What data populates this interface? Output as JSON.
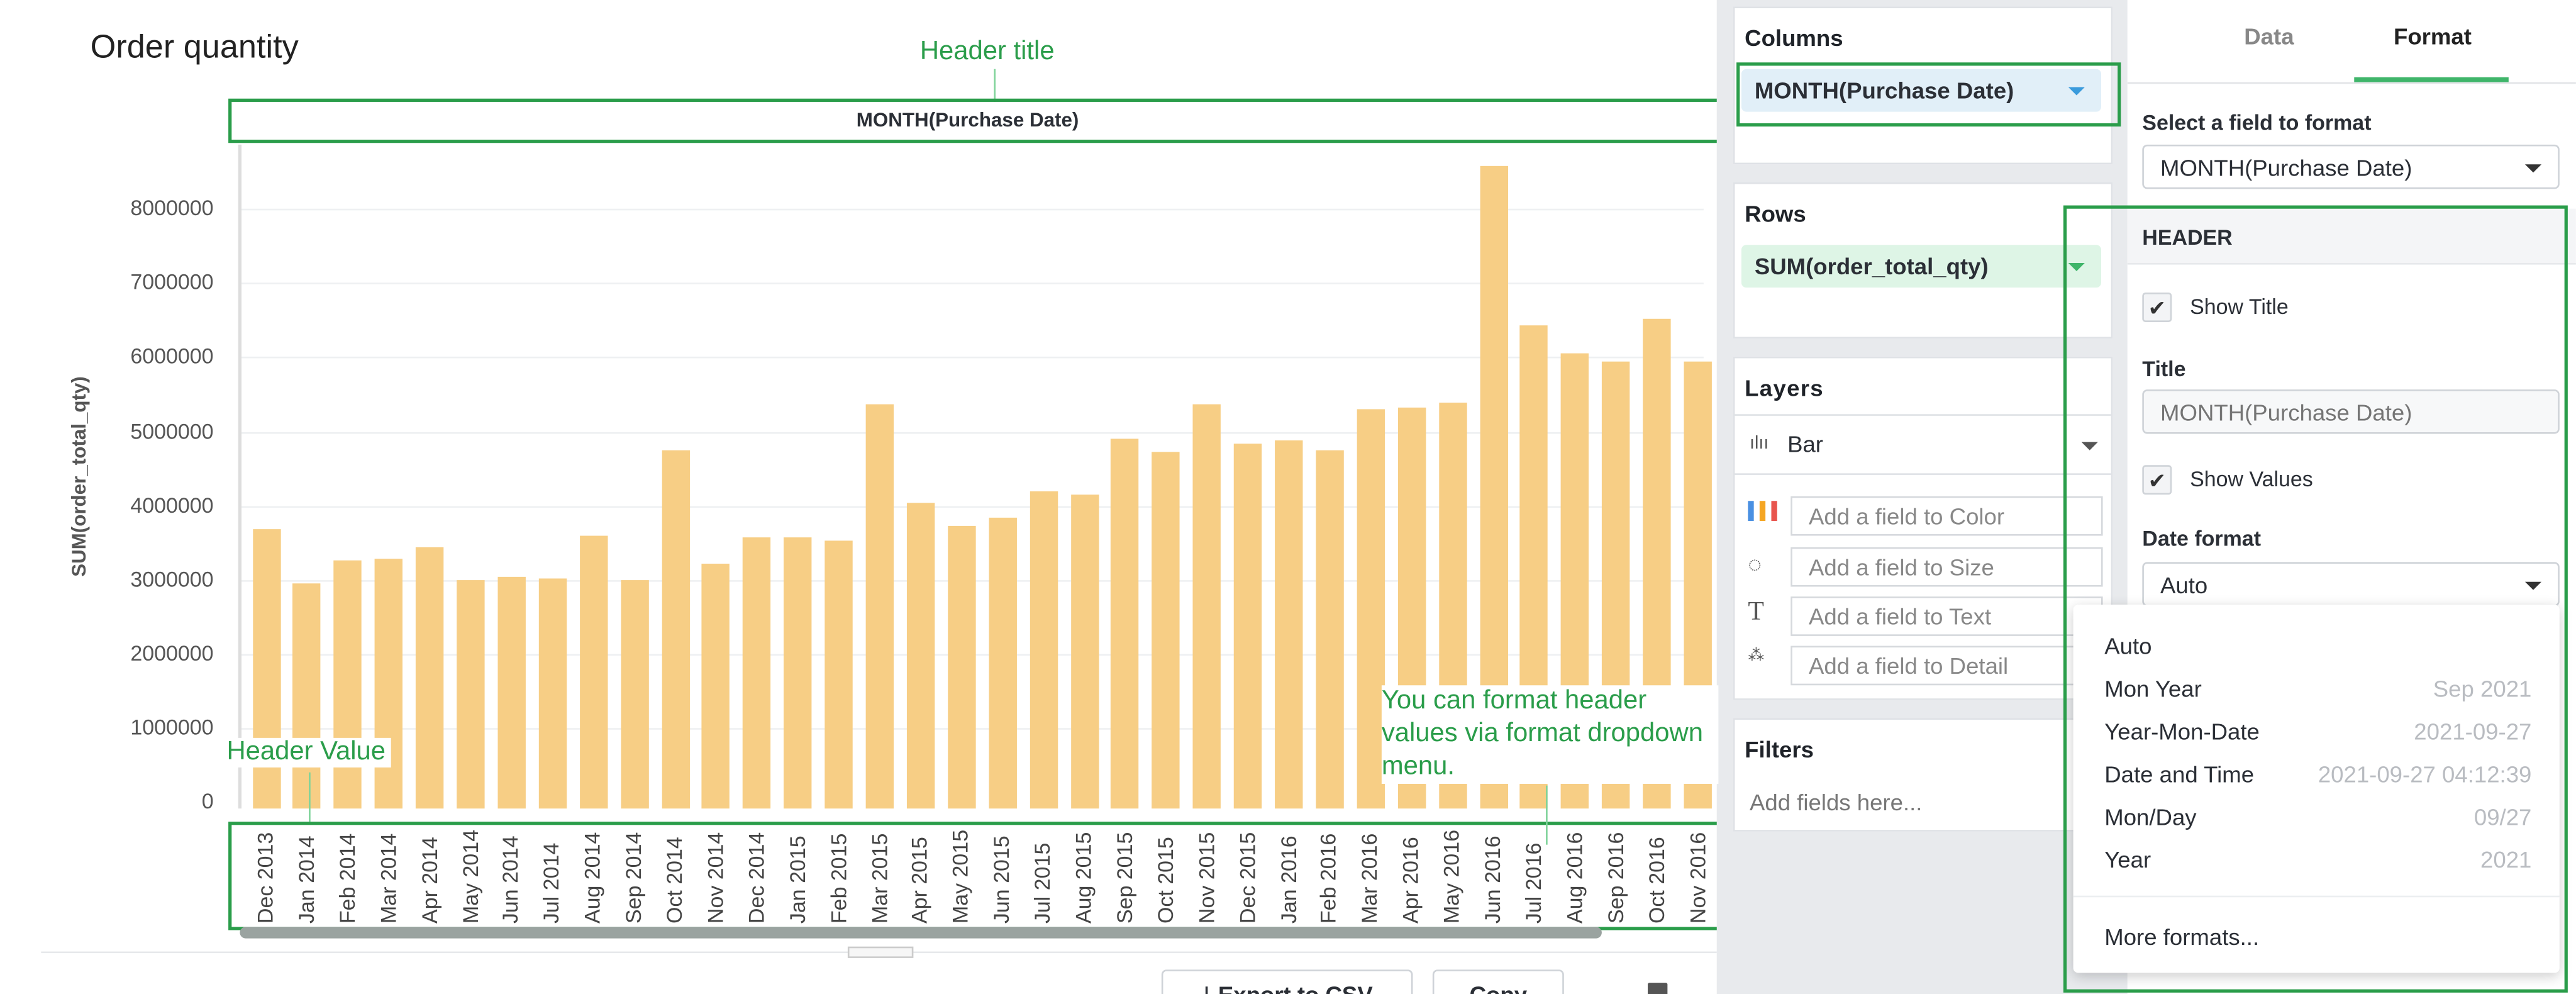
{
  "chart_title": "Order quantity",
  "annotations": {
    "header_title": "Header title",
    "header_value": "Header Value",
    "format_note": "You can format header values via format dropdown menu."
  },
  "chart_data": {
    "type": "bar",
    "title": "MONTH(Purchase Date)",
    "xlabel": "",
    "ylabel": "SUM(order_total_qty)",
    "ylim": [
      0,
      8600000
    ],
    "yticks": [
      "0",
      "1000000",
      "2000000",
      "3000000",
      "4000000",
      "5000000",
      "6000000",
      "7000000",
      "8000000"
    ],
    "grid": true,
    "color": "#f7ce85",
    "categories": [
      "Dec 2013",
      "Jan 2014",
      "Feb 2014",
      "Mar 2014",
      "Apr 2014",
      "May 2014",
      "Jun 2014",
      "Jul 2014",
      "Aug 2014",
      "Sep 2014",
      "Oct 2014",
      "Nov 2014",
      "Dec 2014",
      "Jan 2015",
      "Feb 2015",
      "Mar 2015",
      "Apr 2015",
      "May 2015",
      "Jun 2015",
      "Jul 2015",
      "Aug 2015",
      "Sep 2015",
      "Oct 2015",
      "Nov 2015",
      "Dec 2015",
      "Jan 2016",
      "Feb 2016",
      "Mar 2016",
      "Apr 2016",
      "May 2016",
      "Jun 2016",
      "Jul 2016",
      "Aug 2016",
      "Sep 2016",
      "Oct 2016",
      "Nov 2016"
    ],
    "values": [
      3680000,
      2950000,
      3270000,
      3290000,
      3430000,
      3000000,
      3030000,
      3010000,
      3590000,
      3000000,
      4750000,
      3220000,
      3580000,
      3560000,
      3530000,
      5360000,
      4030000,
      3720000,
      3830000,
      4190000,
      4150000,
      4890000,
      4720000,
      5360000,
      4840000,
      4870000,
      4740000,
      5300000,
      5330000,
      5380000,
      8570000,
      6440000,
      6060000,
      5950000,
      6510000,
      5950000
    ]
  },
  "toolbar": {
    "export_csv": "Export to CSV",
    "copy": "Copy"
  },
  "shelves": {
    "columns": {
      "title": "Columns",
      "field": "MONTH(Purchase Date)"
    },
    "rows": {
      "title": "Rows",
      "field": "SUM(order_total_qty)"
    },
    "layers": {
      "title": "Layers",
      "type": "Bar",
      "color": "Add a field to Color",
      "size": "Add a field to Size",
      "text": "Add a field to Text",
      "detail": "Add a field to Detail"
    },
    "filters": {
      "title": "Filters",
      "placeholder": "Add fields here..."
    }
  },
  "format_panel": {
    "tabs": [
      {
        "label": "Data"
      },
      {
        "label": "Format",
        "active": true
      }
    ],
    "select_label": "Select a field to format",
    "select_value": "MONTH(Purchase Date)",
    "section": "HEADER",
    "show_title": "Show Title",
    "title_label": "Title",
    "title_placeholder": "MONTH(Purchase Date)",
    "show_values": "Show Values",
    "date_format_label": "Date format",
    "date_format_value": "Auto",
    "menu": [
      {
        "label": "Auto",
        "example": ""
      },
      {
        "label": "Mon Year",
        "example": "Sep 2021"
      },
      {
        "label": "Year-Mon-Date",
        "example": "2021-09-27"
      },
      {
        "label": "Date and Time",
        "example": "2021-09-27 04:12:39"
      },
      {
        "label": "Mon/Day",
        "example": "09/27"
      },
      {
        "label": "Year",
        "example": "2021"
      }
    ],
    "more_formats": "More formats..."
  },
  "colors": {
    "accent": "#2a9d4a",
    "tab_underline": "#3fb56a",
    "columns_pill": "#e1eff8",
    "rows_pill": "#def5e6"
  }
}
